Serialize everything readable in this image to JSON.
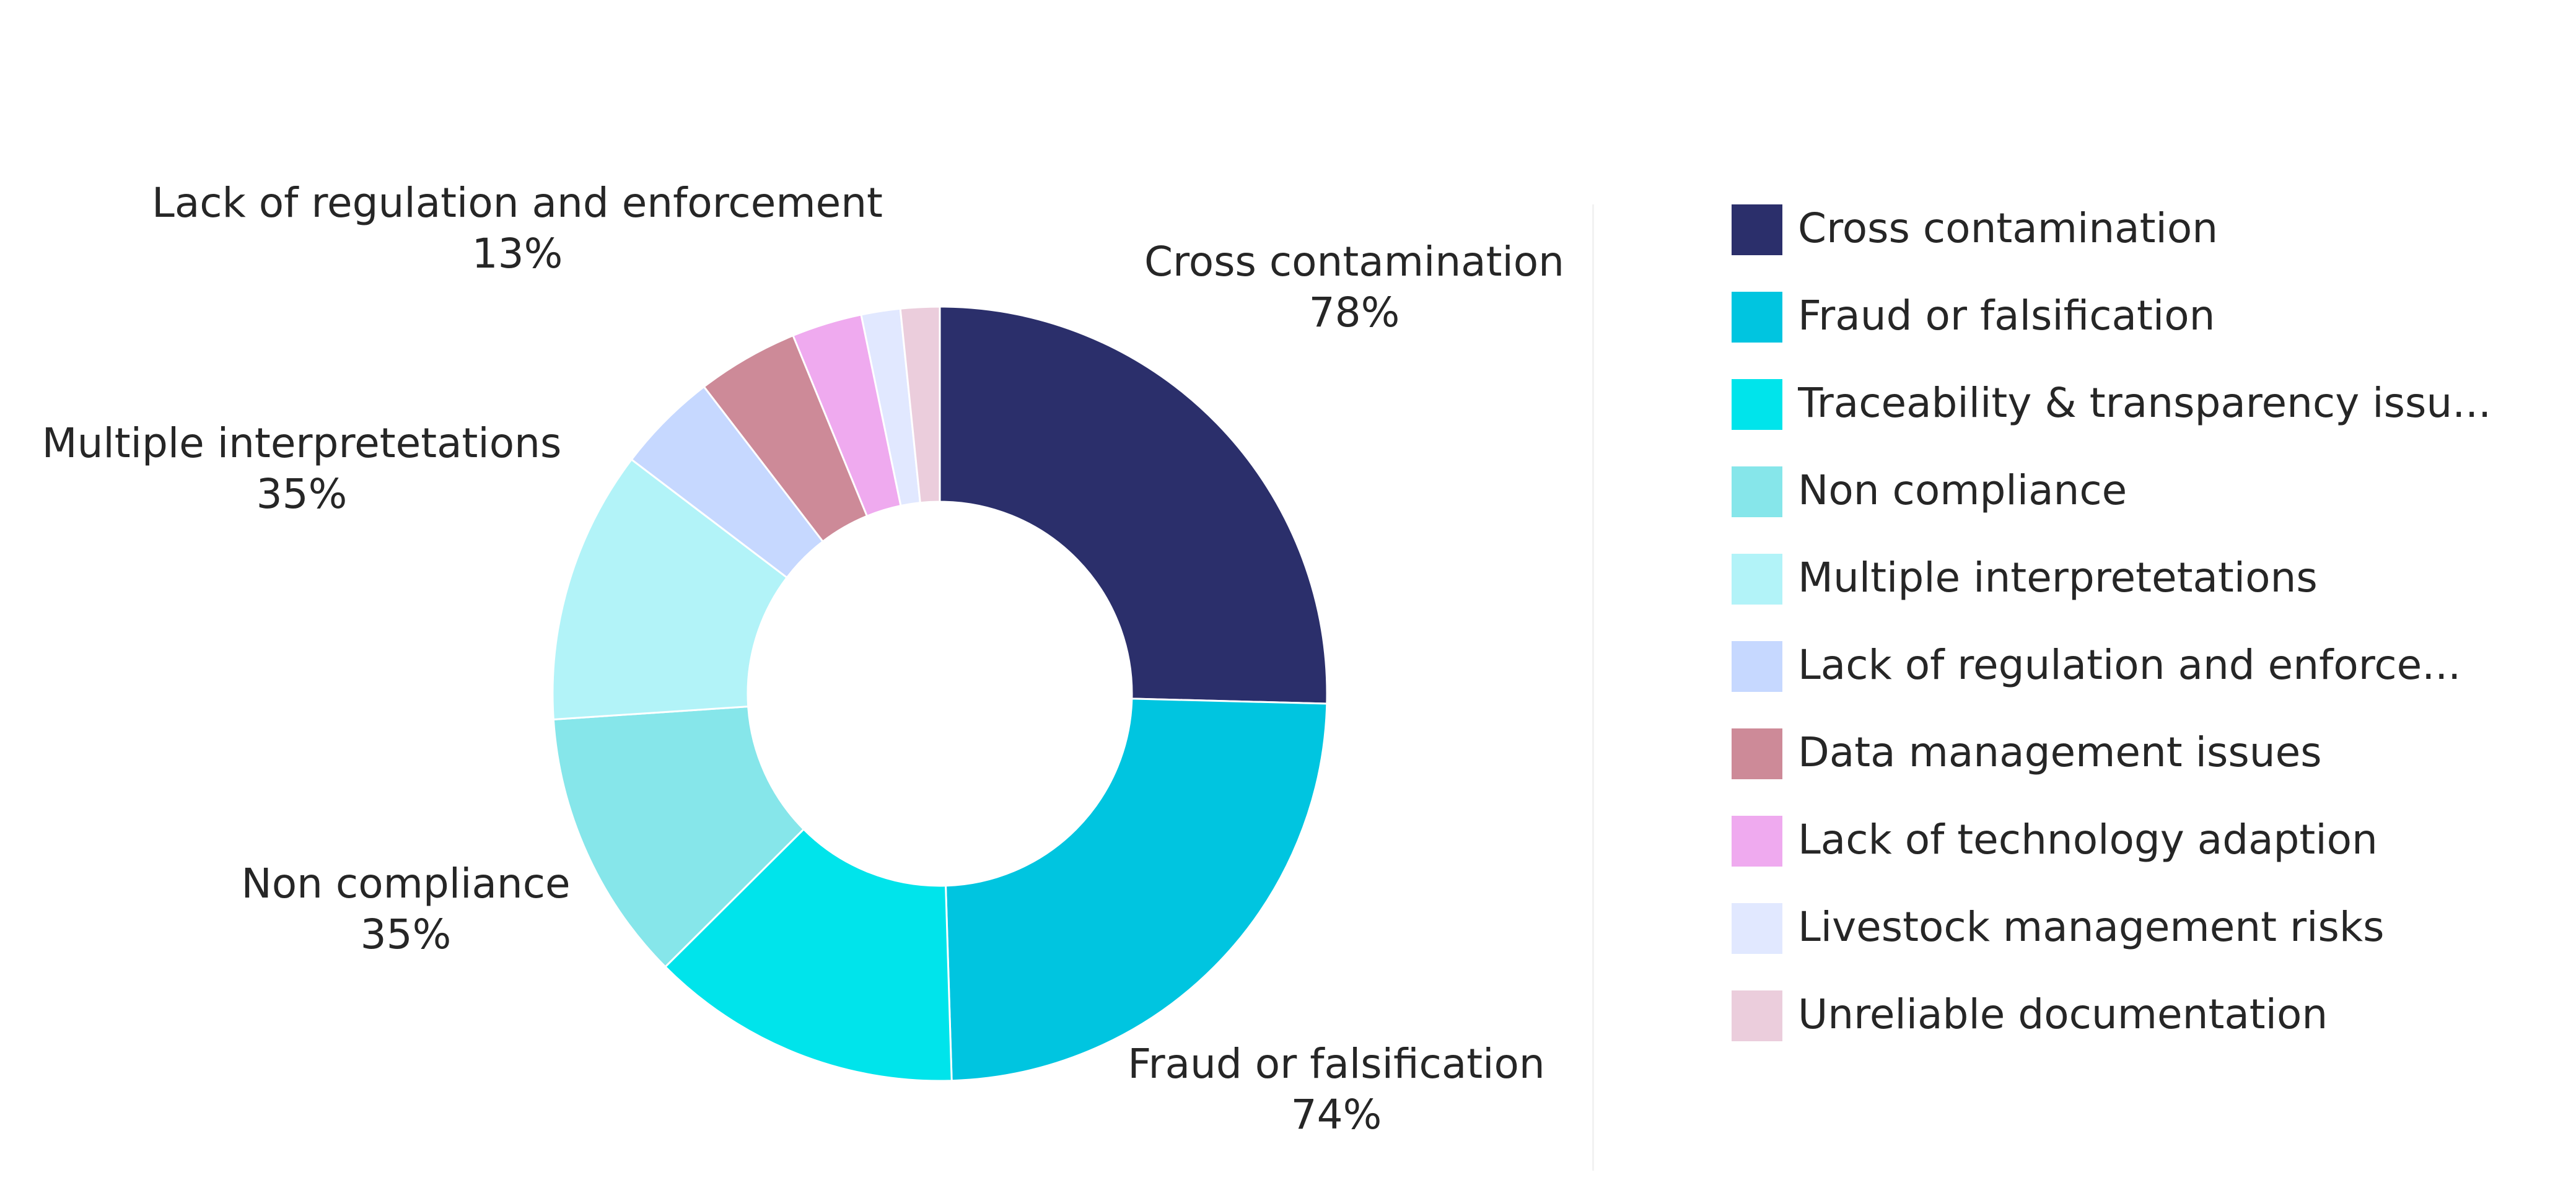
{
  "chart_data": {
    "type": "pie",
    "donut": true,
    "title": "",
    "legend_position": "right",
    "slices": [
      {
        "name": "Cross contamination",
        "value": 78,
        "color": "#2b2f6b"
      },
      {
        "name": "Fraud or falsification",
        "value": 74,
        "color": "#00c5e0"
      },
      {
        "name": "Traceability & transparency issues",
        "value": 40,
        "color": "#00e4eb"
      },
      {
        "name": "Non compliance",
        "value": 35,
        "color": "#86e6ea"
      },
      {
        "name": "Multiple interpretetations",
        "value": 35,
        "color": "#b2f3f8"
      },
      {
        "name": "Lack of regulation and enforcement",
        "value": 13,
        "color": "#c6d8ff"
      },
      {
        "name": "Data management issues",
        "value": 13,
        "color": "#cd8a98"
      },
      {
        "name": "Lack of technology adaption",
        "value": 9,
        "color": "#efaaef"
      },
      {
        "name": "Livestock management risks",
        "value": 5,
        "color": "#e1e8ff"
      },
      {
        "name": "Unreliable documentation",
        "value": 5,
        "color": "#ebcddc"
      }
    ],
    "data_labels": [
      {
        "name": "Cross contamination",
        "value_text": "78%"
      },
      {
        "name": "Fraud or falsification",
        "value_text": "74%"
      },
      {
        "name": "Non compliance",
        "value_text": "35%"
      },
      {
        "name": "Multiple interpretetations",
        "value_text": "35%"
      },
      {
        "name": "Lack of regulation and enforcement",
        "value_text": "13%"
      }
    ],
    "legend": [
      "Cross contamination",
      "Fraud or falsification",
      "Traceability & transparency issu...",
      "Non compliance",
      "Multiple interpretetations",
      "Lack of regulation and enforce...",
      "Data management issues",
      "Lack of technology adaption",
      "Livestock management risks",
      "Unreliable documentation"
    ]
  }
}
